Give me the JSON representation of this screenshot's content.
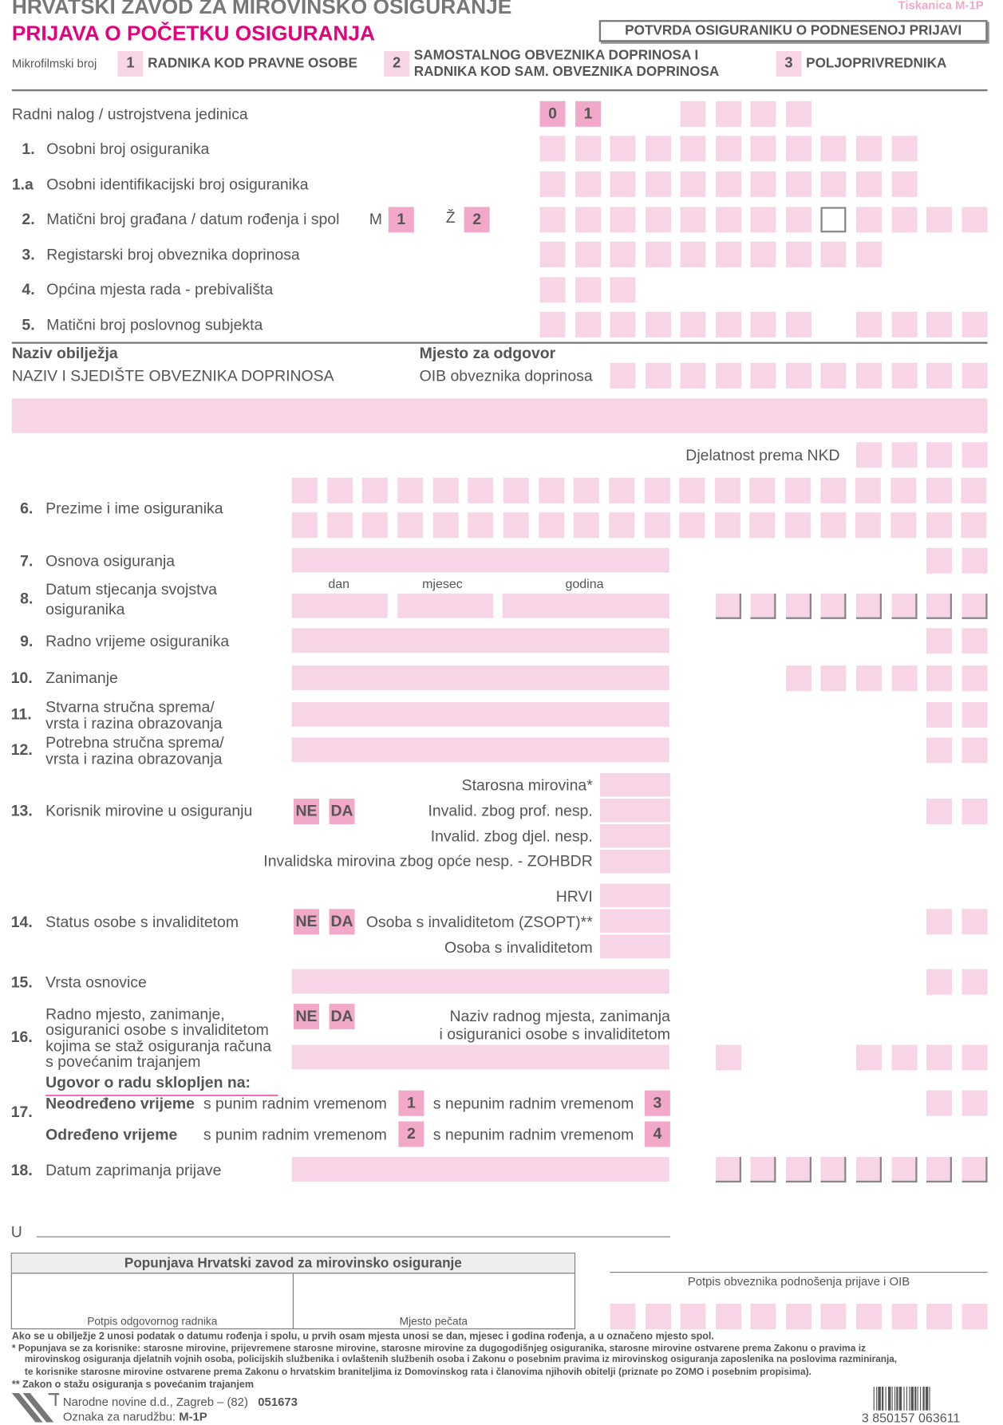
{
  "header": {
    "institution": "HRVATSKI ZAVOD ZA MIROVINSKO OSIGURANJE",
    "form_title": "PRIJAVA O POČETKU OSIGURANJA",
    "form_code": "Tiskanica M-1P",
    "confirmation": "POTVRDA OSIGURANIKU O PODNESENOJ PRIJAVI",
    "microfilm": "Mikrofilmski broj",
    "types": [
      {
        "n": "1",
        "label": "RADNIKA KOD PRAVNE OSOBE"
      },
      {
        "n": "2",
        "label1": "SAMOSTALNOG OBVEZNIKA DOPRINOSA I",
        "label2": "RADNIKA KOD SAM. OBVEZNIKA DOPRINOSA"
      },
      {
        "n": "3",
        "label": "POLJOPRIVREDNIKA"
      }
    ]
  },
  "rows": {
    "r0": {
      "label": "Radni nalog / ustrojstvena jedinica",
      "v1": "0",
      "v2": "1"
    },
    "r1": {
      "n": "1.",
      "label": "Osobni broj osiguranika"
    },
    "r1a": {
      "n": "1.a",
      "label": "Osobni identifikacijski broj osiguranika"
    },
    "r2": {
      "n": "2.",
      "label": "Matični broj građana / datum rođenja i spol",
      "m": "M",
      "m_val": "1",
      "z": "Ž",
      "z_val": "2"
    },
    "r3": {
      "n": "3.",
      "label": "Registarski broj obveznika doprinosa"
    },
    "r4": {
      "n": "4.",
      "label": "Općina mjesta rada - prebivališta"
    },
    "r5": {
      "n": "5.",
      "label": "Matični broj poslovnog subjekta"
    }
  },
  "section": {
    "naziv": "Naziv obilježja",
    "mjesto": "Mjesto za odgovor",
    "naziv_obv": "NAZIV I SJEDIŠTE OBVEZNIKA DOPRINOSA",
    "oib": "OIB obveznika doprinosa",
    "nkd": "Djelatnost prema NKD"
  },
  "items": {
    "r6": {
      "n": "6.",
      "label": "Prezime i ime osiguranika"
    },
    "r7": {
      "n": "7.",
      "label": "Osnova osiguranja"
    },
    "r8": {
      "n": "8.",
      "label1": "Datum stjecanja svojstva",
      "label2": "osiguranika",
      "dan": "dan",
      "mjesec": "mjesec",
      "godina": "godina"
    },
    "r9": {
      "n": "9.",
      "label": "Radno vrijeme osiguranika"
    },
    "r10": {
      "n": "10.",
      "label": "Zanimanje"
    },
    "r11": {
      "n": "11.",
      "label1": "Stvarna stručna sprema/",
      "label2": "vrsta i razina obrazovanja"
    },
    "r12": {
      "n": "12.",
      "label1": "Potrebna stručna sprema/",
      "label2": "vrsta i razina obrazovanja"
    },
    "r13": {
      "n": "13.",
      "label": "Korisnik mirovine u osiguranju",
      "ne": "NE",
      "da": "DA",
      "opts": [
        "Starosna mirovina*",
        "Invalid. zbog prof. nesp.",
        "Invalid. zbog djel. nesp.",
        "Invalidska mirovina zbog opće nesp. - ZOHBDR"
      ]
    },
    "r14": {
      "n": "14.",
      "label": "Status osobe s invaliditetom",
      "ne": "NE",
      "da": "DA",
      "opts": [
        "HRVI",
        "Osoba s invaliditetom (ZSOPT)**",
        "Osoba s invaliditetom"
      ]
    },
    "r15": {
      "n": "15.",
      "label": "Vrsta osnovice"
    },
    "r16": {
      "n": "16.",
      "lines": [
        "Radno mjesto, zanimanje,",
        "osiguranici osobe s invaliditetom",
        "kojima se staž osiguranja računa",
        "s povećanim trajanjem"
      ],
      "ne": "NE",
      "da": "DA",
      "right1": "Naziv radnog mjesta, zanimanja",
      "right2": "i osiguranici osobe s invaliditetom"
    },
    "r17": {
      "n": "17.",
      "heading": "Ugovor o radu sklopljen na:",
      "neodredeno": "Neodređeno vrijeme",
      "odredeno": "Određeno vrijeme",
      "puno": "s punim radnim vremenom",
      "nepuno": "s nepunim radnim vremenom",
      "v1": "1",
      "v2": "2",
      "v3": "3",
      "v4": "4"
    },
    "r18": {
      "n": "18.",
      "label": "Datum zaprimanja prijave"
    }
  },
  "sign": {
    "u": "U",
    "hzmo": "Popunjava Hrvatski zavod za mirovinsko osiguranje",
    "potpis_radnika": "Potpis odgovornog radnika",
    "mjesto_pecata": "Mjesto pečata",
    "potpis_obv": "Potpis obveznika podnošenja prijave i OIB"
  },
  "notes": [
    "Ako se u obilježje 2 unosi podatak o datumu rođenja i spolu, u prvih osam mjesta unosi se dan, mjesec i godina rođenja, a u označeno mjesto spol.",
    "*  Popunjava se za korisnike: starosne mirovine, prijevremene starosne mirovine, starosne mirovine za dugogodišnjeg osiguranika, starosne mirovine ostvarene prema Zakonu o pravima iz",
    "mirovinskog osiguranja djelatnih vojnih osoba, policijskih službenika i ovlaštenih službenih osoba i Zakonu o posebnim pravima iz mirovinskog osiguranja zaposlenika na poslovima razminiranja,",
    "te korisnike starosne mirovine ostvarene prema Zakonu o hrvatskim braniteljima iz Domovinskog rata i članovima njihovih obitelji (priznate po ZOMO i posebnim propisima).",
    "** Zakon o stažu osiguranja s povećanim trajanjem"
  ],
  "publisher": {
    "line1": "Narodne novine d.d., Zagreb – (82)",
    "code": "051673",
    "line2": "Oznaka za narudžbu:",
    "order": "M-1P",
    "barcode": "3 850157 063611"
  },
  "colors": {
    "pink": "#e6007e",
    "field": "#f8d5e6",
    "numbox": "#f2a8c8"
  }
}
